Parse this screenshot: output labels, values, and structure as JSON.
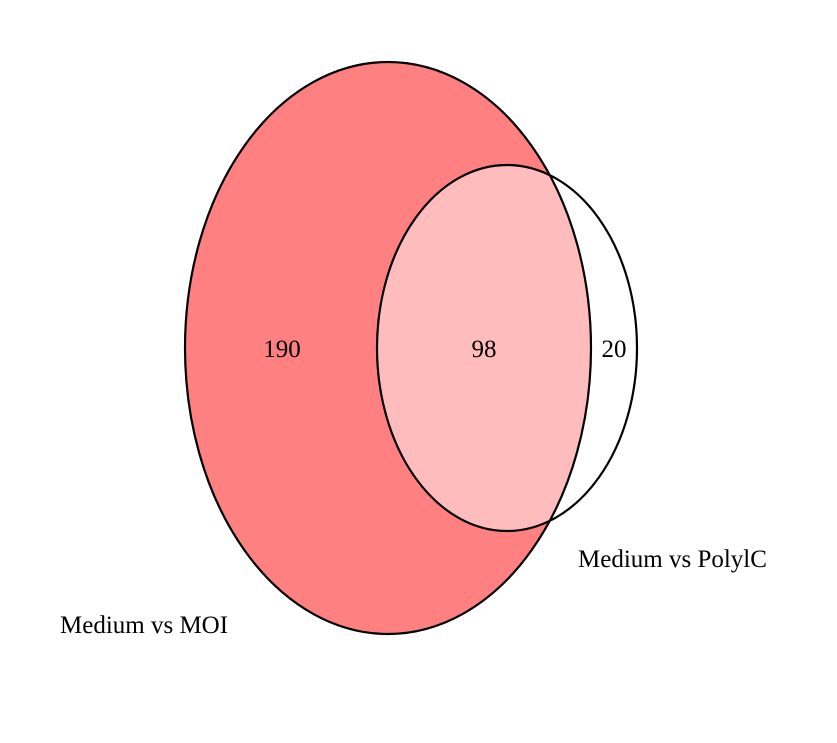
{
  "venn": {
    "sets": [
      {
        "name": "Medium vs MOI",
        "fill": "#ff8080"
      },
      {
        "name": "Medium vs PolylC",
        "fill": "#ffffff"
      }
    ],
    "regions": {
      "moi_only": "190",
      "both": "98",
      "polyic_only": "20"
    },
    "overlap_fill": "#ffbcbc",
    "stroke": "#000000"
  }
}
